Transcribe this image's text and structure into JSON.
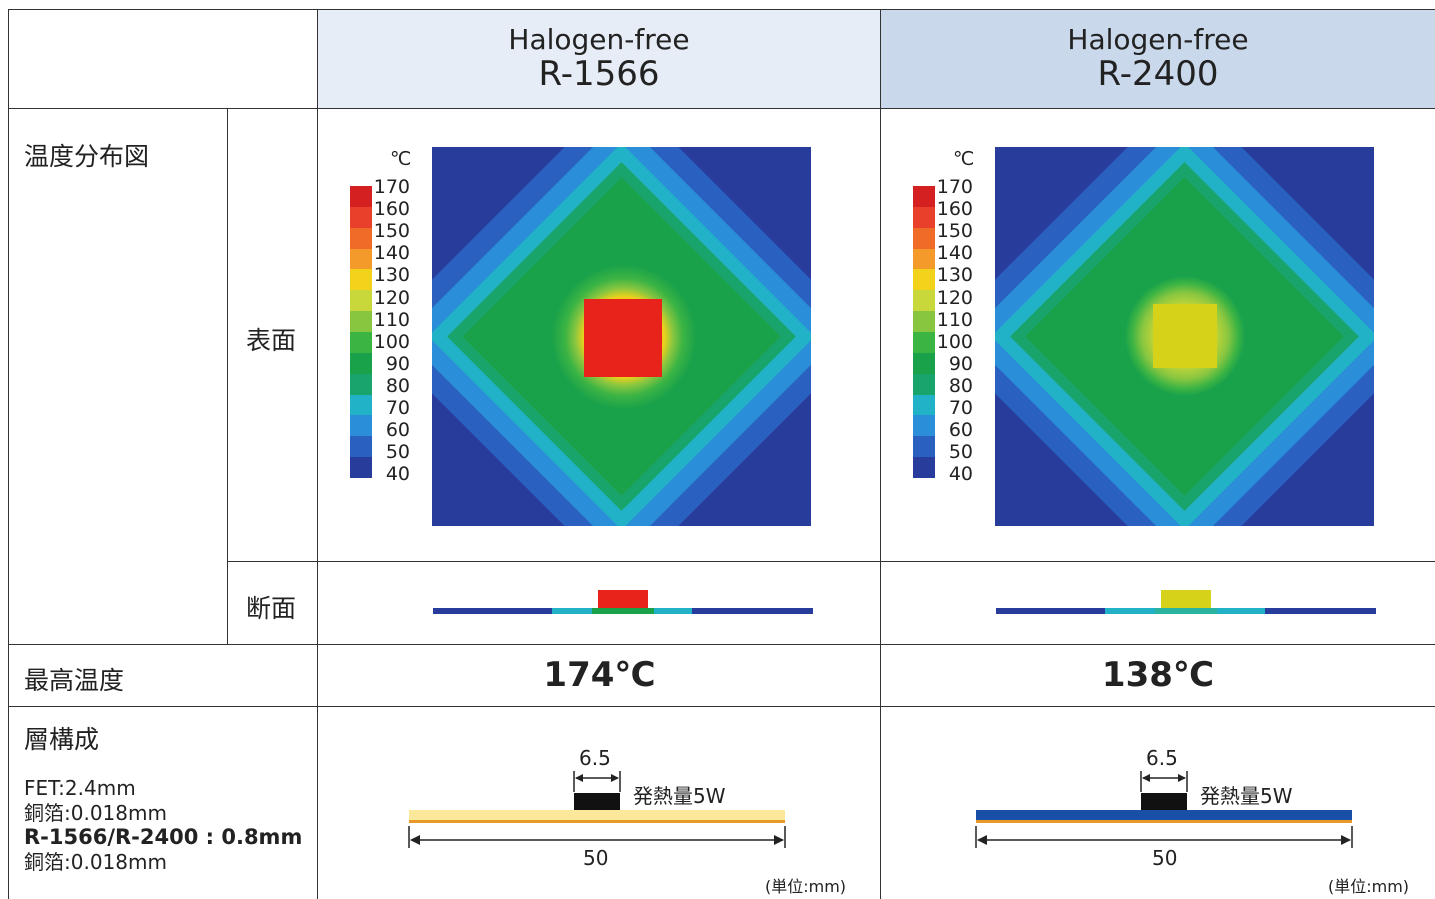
{
  "columns": [
    {
      "line1": "Halogen-free",
      "line2": "R-1566",
      "max_temp": "174℃",
      "hot_color": "#e8231c",
      "layer_color": "#fbe89a",
      "layer_line": "#e79a2a"
    },
    {
      "line1": "Halogen-free",
      "line2": "R-2400",
      "max_temp": "138℃",
      "hot_color": "#d6d21a",
      "layer_color": "#1a4fa8",
      "layer_line": "#e79a2a"
    }
  ],
  "rows": {
    "distribution": "温度分布図",
    "surface": "表面",
    "section": "断面",
    "max_temp": "最高温度",
    "layers": "層構成"
  },
  "scale": {
    "unit": "℃",
    "labels": [
      "170",
      "160",
      "150",
      "140",
      "130",
      "120",
      "110",
      "100",
      "90",
      "80",
      "70",
      "60",
      "50",
      "40"
    ],
    "colors": [
      "#d42020",
      "#e8402a",
      "#f06a28",
      "#f49a2a",
      "#f2d21a",
      "#c8d83a",
      "#88c640",
      "#3cb444",
      "#1aa24a",
      "#19a46c",
      "#22b2c8",
      "#2a8ed8",
      "#2a60c0",
      "#283c9c"
    ]
  },
  "layer_info": {
    "fet": "FET:2.4mm",
    "copper1": "銅箔:0.018mm",
    "core": "R-1566/R-2400 : 0.8mm",
    "copper2": "銅箔:0.018mm"
  },
  "diagram": {
    "chip_width": "6.5",
    "heat": "発熱量5W",
    "length": "50",
    "unit_note": "(単位:mm)"
  }
}
